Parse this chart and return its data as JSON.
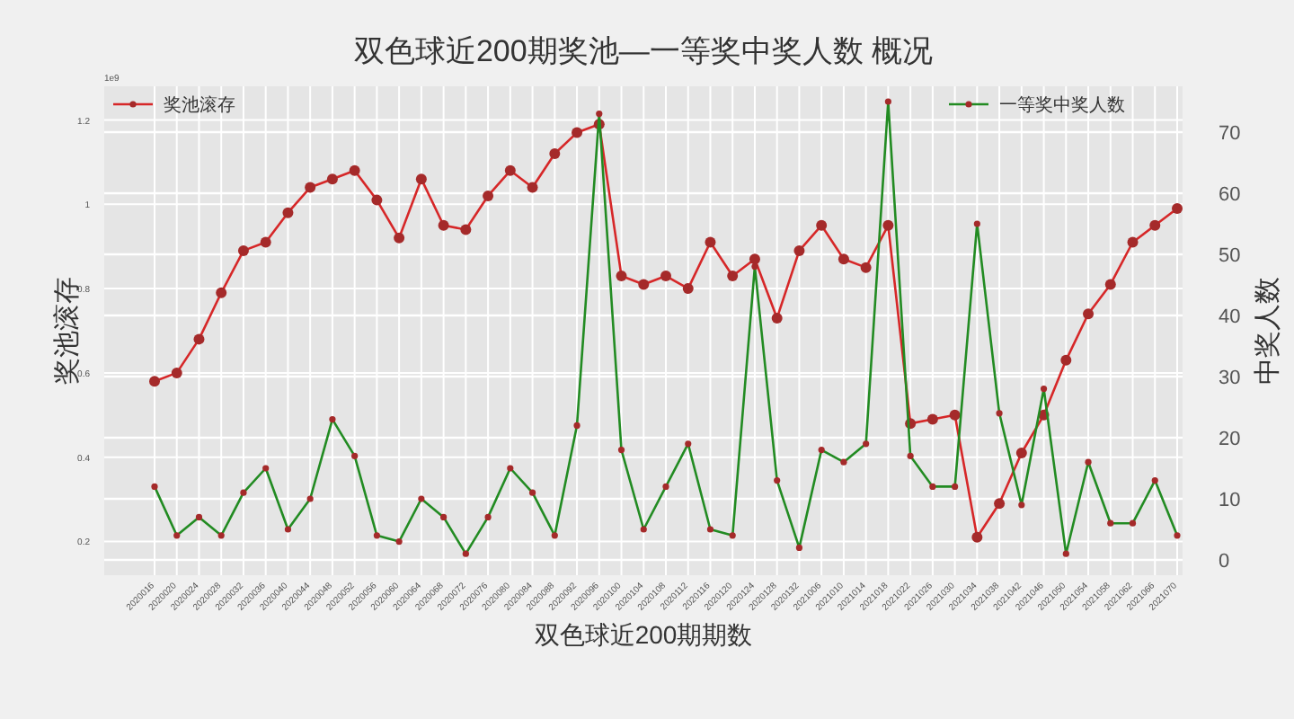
{
  "chart_data": {
    "type": "line",
    "title": "双色球近200期奖池—一等奖中奖人数  概况",
    "xlabel": "双色球近200期期数",
    "ylabel": "奖池滚存",
    "y2label": "中奖人数",
    "annotations": [
      "1e9"
    ],
    "categories": [
      "2020016",
      "2020020",
      "2020024",
      "2020028",
      "2020032",
      "2020036",
      "2020040",
      "2020044",
      "2020048",
      "2020052",
      "2020056",
      "2020060",
      "2020064",
      "2020068",
      "2020072",
      "2020076",
      "2020080",
      "2020084",
      "2020088",
      "2020092",
      "2020096",
      "2020100",
      "2020104",
      "2020108",
      "2020112",
      "2020116",
      "2020120",
      "2020124",
      "2020128",
      "2020132",
      "2021006",
      "2021010",
      "2021014",
      "2021018",
      "2021022",
      "2021026",
      "2021030",
      "2021034",
      "2021038",
      "2021042",
      "2021046",
      "2021050",
      "2021054",
      "2021058",
      "2021062",
      "2021066",
      "2021070"
    ],
    "series": [
      {
        "name": "奖池滚存",
        "color": "#d62728",
        "values": [
          0.58,
          0.6,
          0.68,
          0.79,
          0.89,
          0.91,
          0.98,
          1.04,
          1.06,
          1.08,
          1.01,
          0.92,
          1.06,
          0.95,
          0.94,
          1.02,
          1.08,
          1.04,
          1.12,
          1.17,
          1.19,
          0.83,
          0.81,
          0.83,
          0.8,
          0.91,
          0.83,
          0.87,
          0.73,
          0.89,
          0.95,
          0.87,
          0.85,
          0.95,
          0.48,
          0.49,
          0.5,
          0.21,
          0.29,
          0.41,
          0.5,
          0.63,
          0.74,
          0.81,
          0.91,
          0.95,
          0.99
        ]
      },
      {
        "name": "一等奖中奖人数",
        "color": "#228b22",
        "axis": "y2",
        "values": [
          12,
          4,
          7,
          4,
          11,
          15,
          5,
          10,
          23,
          17,
          4,
          3,
          10,
          7,
          1,
          7,
          15,
          11,
          4,
          22,
          73,
          18,
          5,
          12,
          19,
          5,
          4,
          48,
          13,
          2,
          18,
          16,
          19,
          75,
          17,
          12,
          12,
          55,
          24,
          9,
          28,
          1,
          16,
          6,
          6,
          13,
          4
        ]
      }
    ],
    "ylim": [
      0.12,
      1.28
    ],
    "yticks": [
      0.2,
      0.4,
      0.6,
      0.8,
      1.0,
      1.2
    ],
    "y2lim": [
      -2.5,
      77.5
    ],
    "y2ticks": [
      0,
      10,
      20,
      30,
      40,
      50,
      60,
      70
    ],
    "grid": true,
    "marker": "circle",
    "legend": "top"
  }
}
